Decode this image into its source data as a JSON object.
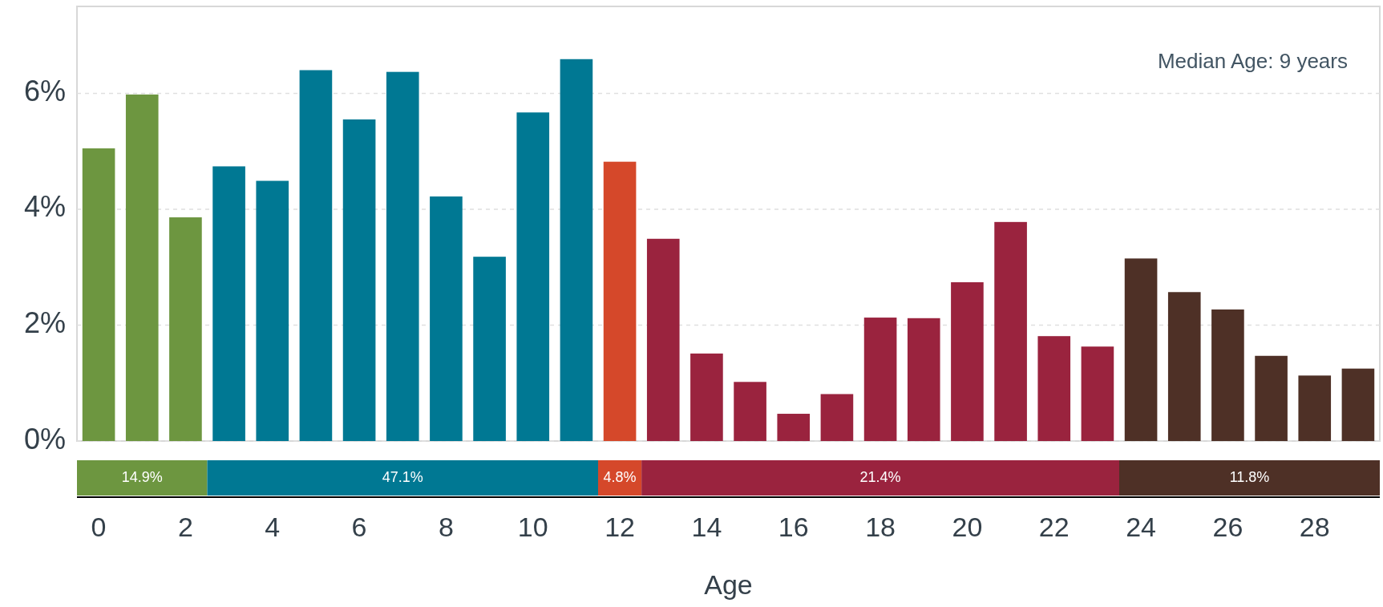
{
  "chart_data": [
    {
      "type": "bar",
      "xlabel": "Age",
      "x": [
        0,
        1,
        2,
        3,
        4,
        5,
        6,
        7,
        8,
        9,
        10,
        11,
        12,
        13,
        14,
        15,
        16,
        17,
        18,
        19,
        20,
        21,
        22,
        23,
        24,
        25,
        26,
        27,
        28,
        29
      ],
      "values": [
        5.05,
        5.98,
        3.86,
        4.74,
        4.49,
        6.4,
        5.55,
        6.37,
        4.22,
        3.18,
        5.67,
        6.59,
        4.82,
        3.49,
        1.51,
        1.02,
        0.47,
        0.81,
        2.13,
        2.12,
        2.74,
        3.78,
        1.81,
        1.63,
        3.15,
        2.57,
        2.27,
        1.47,
        1.13,
        1.25
      ],
      "colors": [
        "#6d9640",
        "#6d9640",
        "#6d9640",
        "#007893",
        "#007893",
        "#007893",
        "#007893",
        "#007893",
        "#007893",
        "#007893",
        "#007893",
        "#007893",
        "#d5482a",
        "#9a233e",
        "#9a233e",
        "#9a233e",
        "#9a233e",
        "#9a233e",
        "#9a233e",
        "#9a233e",
        "#9a233e",
        "#9a233e",
        "#9a233e",
        "#9a233e",
        "#4e3026",
        "#4e3026",
        "#4e3026",
        "#4e3026",
        "#4e3026",
        "#4e3026"
      ],
      "xlim": [
        -0.5,
        29.5
      ],
      "xticks": [
        0,
        2,
        4,
        6,
        8,
        10,
        12,
        14,
        16,
        18,
        20,
        22,
        24,
        26,
        28
      ],
      "ylim": [
        0,
        7.5
      ],
      "yticks": [
        {
          "value": 0,
          "label": "0%"
        },
        {
          "value": 2,
          "label": "2%"
        },
        {
          "value": 4,
          "label": "4%"
        },
        {
          "value": 6,
          "label": "6%"
        }
      ],
      "grid": "y",
      "annotations": [
        "Median Age: 9 years"
      ]
    },
    {
      "type": "other",
      "values": [
        14.9,
        47.1,
        4.8,
        21.4,
        11.8
      ],
      "value_labels": [
        "14.9%",
        "47.1%",
        "4.8%",
        "21.4%",
        "11.8%"
      ],
      "colors": [
        "#6d9640",
        "#007893",
        "#d5482a",
        "#9a233e",
        "#4e3026"
      ]
    }
  ]
}
